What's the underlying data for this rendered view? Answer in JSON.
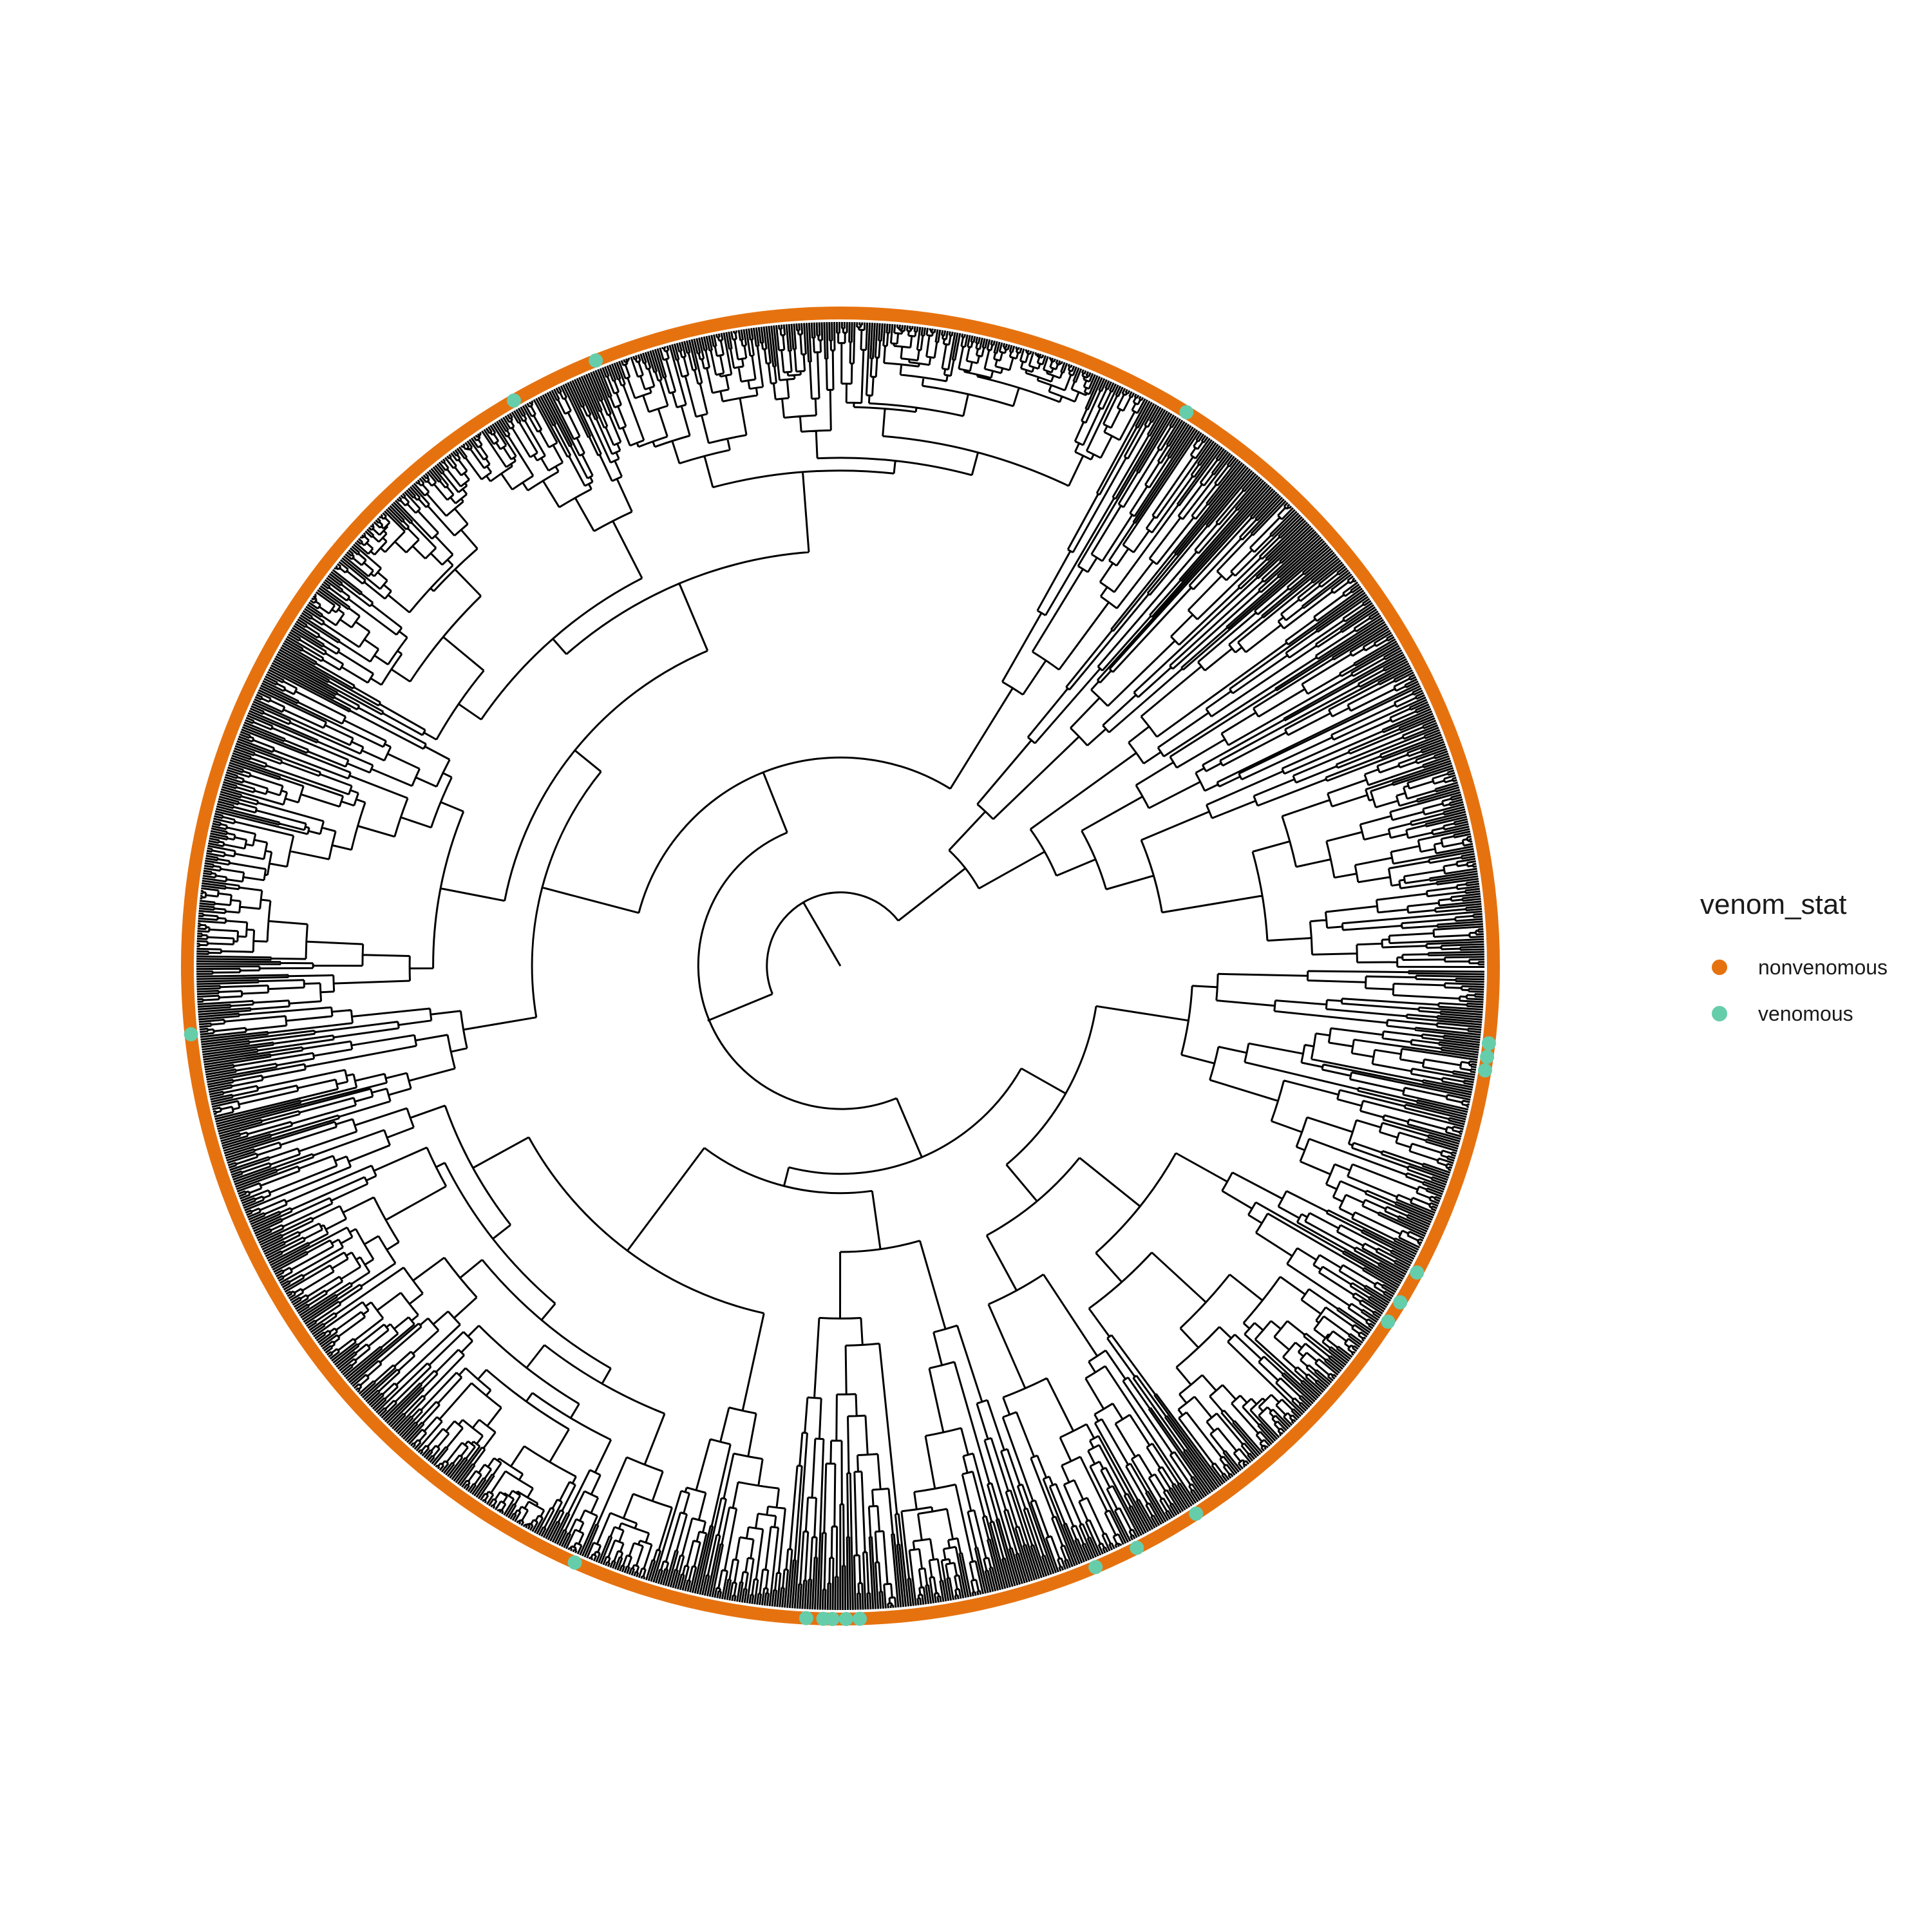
{
  "legend": {
    "title": "venom_stat",
    "items": [
      {
        "label": "nonvenomous",
        "color": "#E6720F"
      },
      {
        "label": "venomous",
        "color": "#66CDAA"
      }
    ]
  },
  "tree": {
    "layout": "circular",
    "branch_color": "#000000",
    "tip_states": [
      "nonvenomous",
      "venomous"
    ],
    "venomous_tip_angles_deg": [
      -58,
      -112,
      -120,
      8,
      28,
      31,
      33,
      57,
      63,
      67,
      89.5,
      91.5,
      93,
      114,
      174
    ]
  }
}
